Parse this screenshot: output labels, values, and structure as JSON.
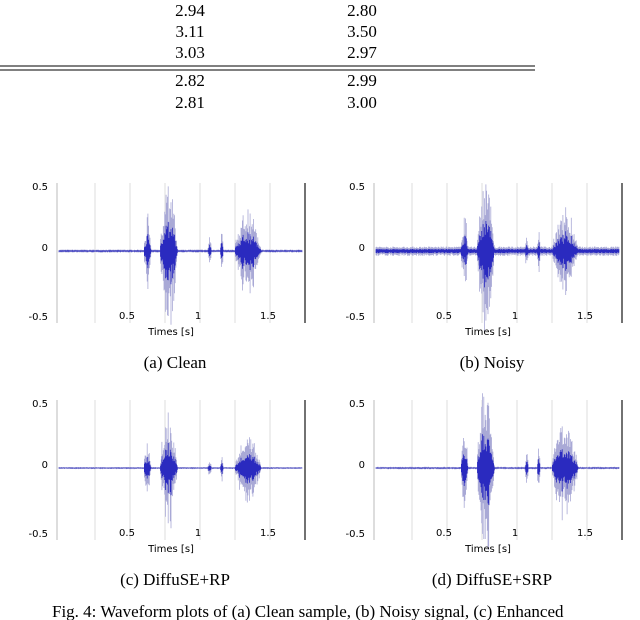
{
  "table": {
    "rows": [
      [
        "2.94",
        "2.80"
      ],
      [
        "3.11",
        "3.50"
      ],
      [
        "3.03",
        "2.97"
      ],
      [
        "2.82",
        "2.99"
      ],
      [
        "2.81",
        "3.00"
      ]
    ]
  },
  "figures": [
    {
      "yticks": [
        "0.5",
        "0",
        "-0.5"
      ],
      "xticks": [
        "0.5",
        "1",
        "1.5"
      ],
      "xlabel": "Times [s]",
      "caption": "(a) Clean"
    },
    {
      "yticks": [
        "0.5",
        "0",
        "-0.5"
      ],
      "xticks": [
        "0.5",
        "1",
        "1.5"
      ],
      "xlabel": "Times [s]",
      "caption": "(b) Noisy"
    },
    {
      "yticks": [
        "0.5",
        "0",
        "-0.5"
      ],
      "xticks": [
        "0.5",
        "1",
        "1.5"
      ],
      "xlabel": "Times [s]",
      "caption": "(c) DiffuSE+RP"
    },
    {
      "yticks": [
        "0.5",
        "0",
        "-0.5"
      ],
      "xticks": [
        "0.5",
        "1",
        "1.5"
      ],
      "xlabel": "Times [s]",
      "caption": "(d) DiffuSE+SRP"
    }
  ],
  "figure_caption": "Fig. 4: Waveform plots of (a) Clean sample, (b) Noisy signal, (c) Enhanced"
}
